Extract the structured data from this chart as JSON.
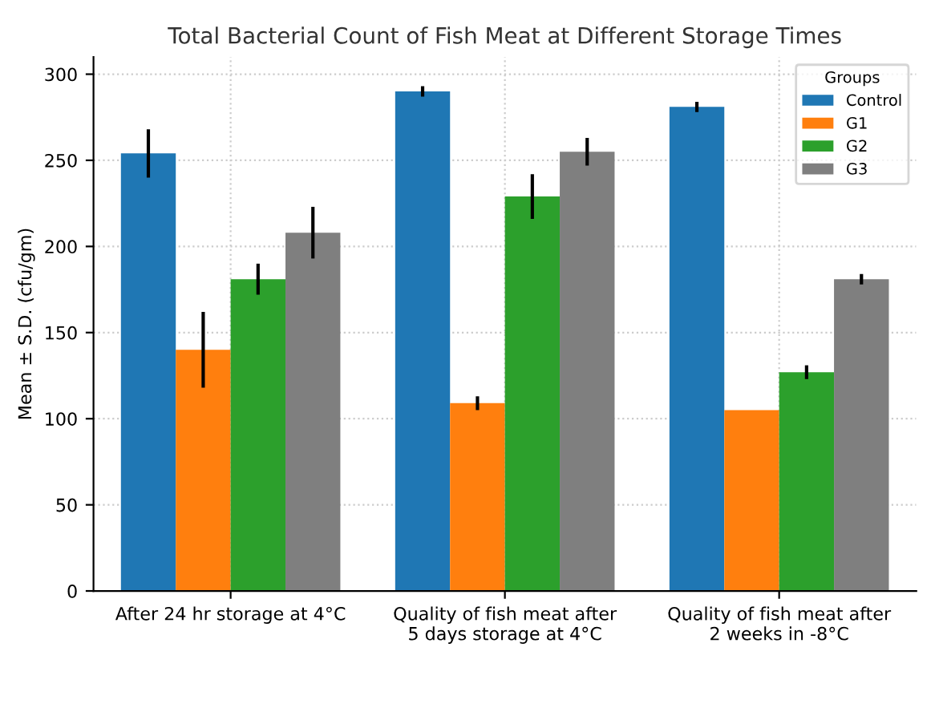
{
  "chart_data": {
    "type": "bar",
    "title": "Total Bacterial Count of Fish Meat at Different Storage Times",
    "ylabel": "Mean ± S.D. (cfu/gm)",
    "legend_title": "Groups",
    "categories": [
      "After 24 hr storage at 4°C",
      "Quality of fish meat after 5 days storage at 4°C",
      "Quality of fish meat after 2 weeks in -8°C"
    ],
    "series": [
      {
        "name": "Control",
        "color": "#1f77b4",
        "values": [
          254,
          290,
          281
        ],
        "errors": [
          14,
          3,
          3
        ]
      },
      {
        "name": "G1",
        "color": "#ff7f0e",
        "values": [
          140,
          109,
          105
        ],
        "errors": [
          22,
          4,
          null
        ]
      },
      {
        "name": "G2",
        "color": "#2ca02c",
        "values": [
          181,
          229,
          127
        ],
        "errors": [
          9,
          13,
          4
        ]
      },
      {
        "name": "G3",
        "color": "#7f7f7f",
        "values": [
          208,
          255,
          181
        ],
        "errors": [
          15,
          8,
          3
        ]
      }
    ],
    "ylim": [
      0,
      310
    ],
    "yticks": [
      0,
      50,
      100,
      150,
      200,
      250,
      300
    ],
    "grid": true,
    "legend": "top right"
  }
}
